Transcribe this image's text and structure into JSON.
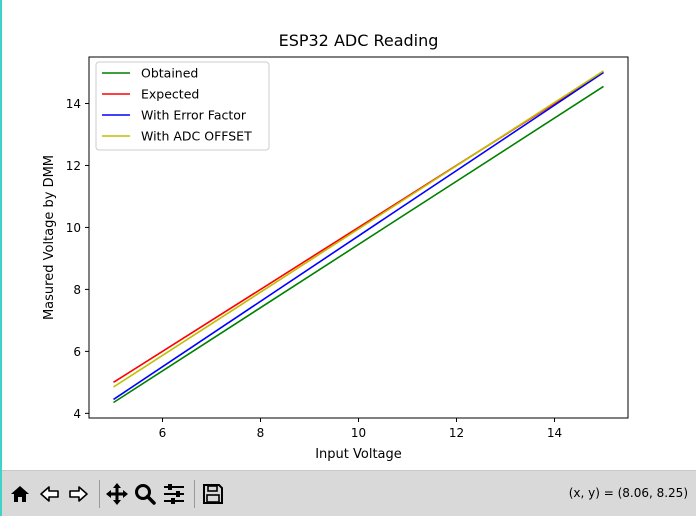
{
  "chart_data": {
    "type": "line",
    "title": "ESP32 ADC Reading",
    "xlabel": "Input Voltage",
    "ylabel": "Masured Voltage by DMM",
    "xlim": [
      4.5,
      15.5
    ],
    "ylim": [
      3.85,
      15.5
    ],
    "xticks": [
      6,
      8,
      10,
      12,
      14
    ],
    "yticks": [
      4,
      6,
      8,
      10,
      12,
      14
    ],
    "grid": false,
    "legend": "top-left",
    "series": [
      {
        "name": "Obtained",
        "color": "#008000",
        "x": [
          5,
          15
        ],
        "y": [
          4.35,
          14.55
        ]
      },
      {
        "name": "Expected",
        "color": "#ff0000",
        "x": [
          5,
          15
        ],
        "y": [
          5.0,
          15.0
        ]
      },
      {
        "name": "With Error Factor",
        "color": "#0000ff",
        "x": [
          5,
          15
        ],
        "y": [
          4.45,
          15.0
        ]
      },
      {
        "name": "With ADC OFFSET",
        "color": "#bfbf00",
        "x": [
          5,
          15
        ],
        "y": [
          4.85,
          15.05
        ]
      }
    ]
  },
  "toolbar": {
    "buttons": [
      {
        "name": "home-icon",
        "label": "Home"
      },
      {
        "name": "back-icon",
        "label": "Back"
      },
      {
        "name": "forward-icon",
        "label": "Forward"
      },
      {
        "name": "pan-icon",
        "label": "Pan"
      },
      {
        "name": "zoom-icon",
        "label": "Zoom"
      },
      {
        "name": "configure-subplots-icon",
        "label": "Configure subplots"
      },
      {
        "name": "save-icon",
        "label": "Save"
      }
    ],
    "coords": "(x, y) = (8.06, 8.25)"
  }
}
